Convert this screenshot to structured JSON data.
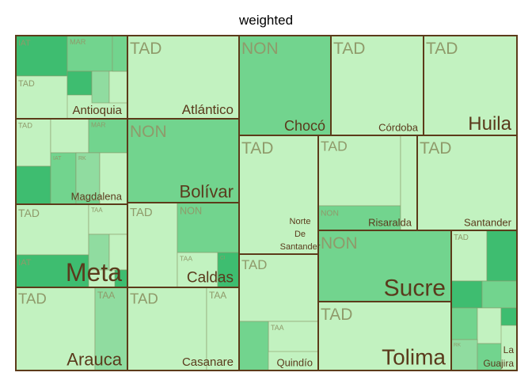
{
  "chart_data": {
    "type": "treemap",
    "title": "weighted",
    "colors": {
      "light": "#c2f2c0",
      "mid": "#90dca0",
      "medium": "#72d48e",
      "dark": "#3ebd70",
      "group_border": "#5c3b1a",
      "sub_border": "#8a9a6c"
    },
    "groups": [
      {
        "name": "Antioquia",
        "label_size": 15,
        "label_pos": "bottom-right",
        "sub": [
          [
            "IAT",
            "dark"
          ],
          [
            "MAR",
            "medium"
          ],
          [
            "TAD",
            "light"
          ],
          [
            "",
            "dark"
          ],
          [
            "",
            "mid"
          ],
          [
            "",
            "light"
          ],
          [
            "",
            "medium"
          ]
        ]
      },
      {
        "name": "Atlántico",
        "label_size": 17,
        "label_pos": "bottom-right",
        "sub": [
          [
            "TAD",
            "light"
          ]
        ]
      },
      {
        "name": "Chocó",
        "label_size": 18,
        "label_pos": "bottom-right",
        "sub": [
          [
            "NON",
            "medium"
          ]
        ]
      },
      {
        "name": "Córdoba",
        "label_size": 13,
        "label_pos": "bottom-right",
        "sub": [
          [
            "TAD",
            "light"
          ]
        ]
      },
      {
        "name": "Huila",
        "label_size": 24,
        "label_pos": "bottom-right",
        "sub": [
          [
            "TAD",
            "light"
          ]
        ]
      },
      {
        "name": "Magdalena",
        "label_size": 13,
        "label_pos": "bottom-right",
        "sub": [
          [
            "TAD",
            "light"
          ],
          [
            "",
            "dark"
          ],
          [
            "",
            "light"
          ],
          [
            "IAT",
            "medium"
          ],
          [
            "MAR",
            "medium"
          ],
          [
            "",
            "medium"
          ],
          [
            "RK",
            "mid"
          ],
          [
            "",
            "light"
          ]
        ]
      },
      {
        "name": "Bolívar",
        "label_size": 22,
        "label_pos": "bottom-right",
        "sub": [
          [
            "NON",
            "medium"
          ]
        ]
      },
      {
        "name": "Norte De Santander",
        "label_size": 11,
        "label_pos": "bottom-right",
        "sub": [
          [
            "TAD",
            "light"
          ]
        ]
      },
      {
        "name": "Risaralda",
        "label_size": 13,
        "label_pos": "bottom-right",
        "sub": [
          [
            "TAD",
            "light"
          ],
          [
            "NON",
            "medium"
          ],
          [
            "",
            "light"
          ]
        ]
      },
      {
        "name": "Santander",
        "label_size": 13,
        "label_pos": "bottom-right",
        "sub": [
          [
            "TAD",
            "light"
          ]
        ]
      },
      {
        "name": "Meta",
        "label_size": 32,
        "label_pos": "bottom-right",
        "sub": [
          [
            "TAD",
            "light"
          ],
          [
            "TAA",
            "light"
          ],
          [
            "IAT",
            "dark"
          ],
          [
            "",
            "mid"
          ],
          [
            "",
            "light"
          ],
          [
            "",
            "dark"
          ]
        ]
      },
      {
        "name": "Caldas",
        "label_size": 19,
        "label_pos": "bottom-right",
        "sub": [
          [
            "TAD",
            "light"
          ],
          [
            "NON",
            "medium"
          ],
          [
            "TAA",
            "light"
          ],
          [
            "CI",
            "dark"
          ]
        ]
      },
      {
        "name": "Quindío",
        "label_size": 13,
        "label_pos": "bottom-right",
        "sub": [
          [
            "TAD",
            "light"
          ],
          [
            "TAA",
            "light"
          ],
          [
            "",
            "medium"
          ]
        ]
      },
      {
        "name": "Sucre",
        "label_size": 30,
        "label_pos": "bottom-right",
        "sub": [
          [
            "NON",
            "medium"
          ]
        ]
      },
      {
        "name": "La Guajira",
        "label_size": 12,
        "label_pos": "bottom-right",
        "sub": [
          [
            "TAD",
            "light"
          ],
          [
            "",
            "dark"
          ],
          [
            "",
            "dark"
          ],
          [
            "",
            "medium"
          ],
          [
            "",
            "medium"
          ],
          [
            "",
            "light"
          ],
          [
            "RK",
            "mid"
          ],
          [
            "",
            "dark"
          ],
          [
            "",
            "medium"
          ]
        ]
      },
      {
        "name": "Arauca",
        "label_size": 22,
        "label_pos": "bottom-right",
        "sub": [
          [
            "TAD",
            "light"
          ],
          [
            "TAA",
            "mid"
          ]
        ]
      },
      {
        "name": "Casanare",
        "label_size": 15,
        "label_pos": "bottom-right",
        "sub": [
          [
            "TAD",
            "light"
          ],
          [
            "TAA",
            "light"
          ]
        ]
      },
      {
        "name": "Tolima",
        "label_size": 28,
        "label_pos": "bottom-right",
        "sub": [
          [
            "TAD",
            "light"
          ]
        ]
      }
    ]
  }
}
